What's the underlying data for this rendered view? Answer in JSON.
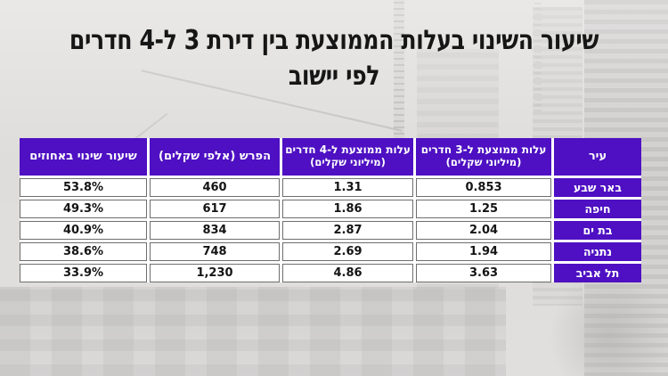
{
  "page": {
    "title_line1": "שיעור השינוי בעלות הממוצעת בין דירת 3 ל-4 חדרים",
    "title_line2": "לפי יישוב"
  },
  "table": {
    "headers": {
      "city": "עיר",
      "avg3_line1": "עלות ממוצעת ל-3 חדרים",
      "avg3_line2": "(מיליוני שקלים)",
      "avg4_line1": "עלות ממוצעת ל-4 חדרים",
      "avg4_line2": "(מיליוני שקלים)",
      "diff": "הפרש (אלפי שקלים)",
      "pct": "שיעור שינוי באחוזים"
    },
    "rows": [
      {
        "city": "באר שבע",
        "avg3": "0.853",
        "avg4": "1.31",
        "diff": "460",
        "pct": "53.8%"
      },
      {
        "city": "חיפה",
        "avg3": "1.25",
        "avg4": "1.86",
        "diff": "617",
        "pct": "49.3%"
      },
      {
        "city": "בת ים",
        "avg3": "2.04",
        "avg4": "2.87",
        "diff": "834",
        "pct": "40.9%"
      },
      {
        "city": "נתניה",
        "avg3": "1.94",
        "avg4": "2.69",
        "diff": "748",
        "pct": "38.6%"
      },
      {
        "city": "תל אביב",
        "avg3": "3.63",
        "avg4": "4.86",
        "diff": "1,230",
        "pct": "33.9%"
      }
    ]
  },
  "colors": {
    "header_purple": "#4e10c2",
    "cell_border": "#6e6e6e",
    "title_color": "#161616",
    "page_bg": "#cfcdcb"
  },
  "chart_data": {
    "type": "table",
    "title": "שיעור השינוי בעלות הממוצעת בין דירת 3 ל-4 חדרים לפי יישוב",
    "columns": [
      "עיר",
      "עלות ממוצעת ל-3 חדרים (מיליוני שקלים)",
      "עלות ממוצעת ל-4 חדרים (מיליוני שקלים)",
      "הפרש (אלפי שקלים)",
      "שיעור שינוי באחוזים"
    ],
    "rows": [
      [
        "באר שבע",
        0.853,
        1.31,
        460,
        "53.8%"
      ],
      [
        "חיפה",
        1.25,
        1.86,
        617,
        "49.3%"
      ],
      [
        "בת ים",
        2.04,
        2.87,
        834,
        "40.9%"
      ],
      [
        "נתניה",
        1.94,
        2.69,
        748,
        "38.6%"
      ],
      [
        "תל אביב",
        3.63,
        4.86,
        1230,
        "33.9%"
      ]
    ]
  }
}
